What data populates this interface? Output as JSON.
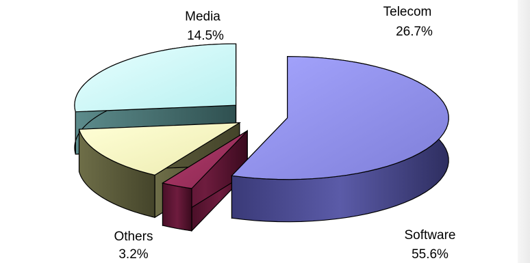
{
  "chart_data": {
    "type": "pie",
    "style": "3d-exploded",
    "slices": [
      {
        "label": "Software",
        "value": 55.6,
        "display": "55.6%",
        "color": "#9a9af0"
      },
      {
        "label": "Telecom",
        "value": 26.7,
        "display": "26.7%",
        "color": "#d4fbfb"
      },
      {
        "label": "Media",
        "value": 14.5,
        "display": "14.5%",
        "color": "#fbfbc8"
      },
      {
        "label": "Others",
        "value": 3.2,
        "display": "3.2%",
        "color": "#a0335e"
      }
    ],
    "legend": "none",
    "grid": false
  }
}
